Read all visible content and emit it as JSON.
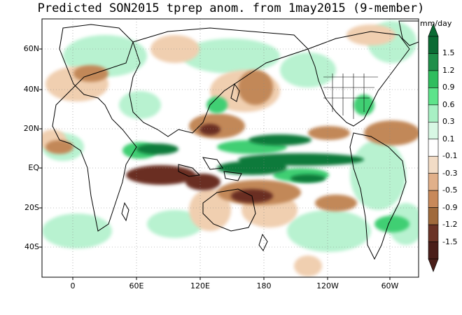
{
  "title": "Predicted SON2015 tprep anom. from 1may2015 (9-member)",
  "units": "mm/day",
  "lat_labels": [
    "60N",
    "40N",
    "20N",
    "EQ",
    "20S",
    "40S"
  ],
  "lon_labels": [
    "0",
    "60E",
    "120E",
    "180",
    "120W",
    "60W"
  ],
  "colorbar": {
    "labels": [
      "1.5",
      "1.2",
      "0.9",
      "0.6",
      "0.3",
      "0.1",
      "-0.1",
      "-0.3",
      "-0.5",
      "-0.9",
      "-1.2",
      "-1.5"
    ],
    "colors": [
      "#0b6b34",
      "#1f8f4a",
      "#2fbd5e",
      "#5ee38b",
      "#a8f0c4",
      "#d8f8e4",
      "#ffffff",
      "#f2dcc6",
      "#e1b08a",
      "#c8895a",
      "#a06a3c",
      "#6b3326",
      "#4a1e19"
    ]
  },
  "colors": {
    "positive_strong": "#0b7a3a",
    "positive_mid": "#3fcf73",
    "positive_light": "#b8f2d0",
    "negative_light": "#f0cfb0",
    "negative_mid": "#c28858",
    "negative_strong": "#6a2f22"
  }
}
